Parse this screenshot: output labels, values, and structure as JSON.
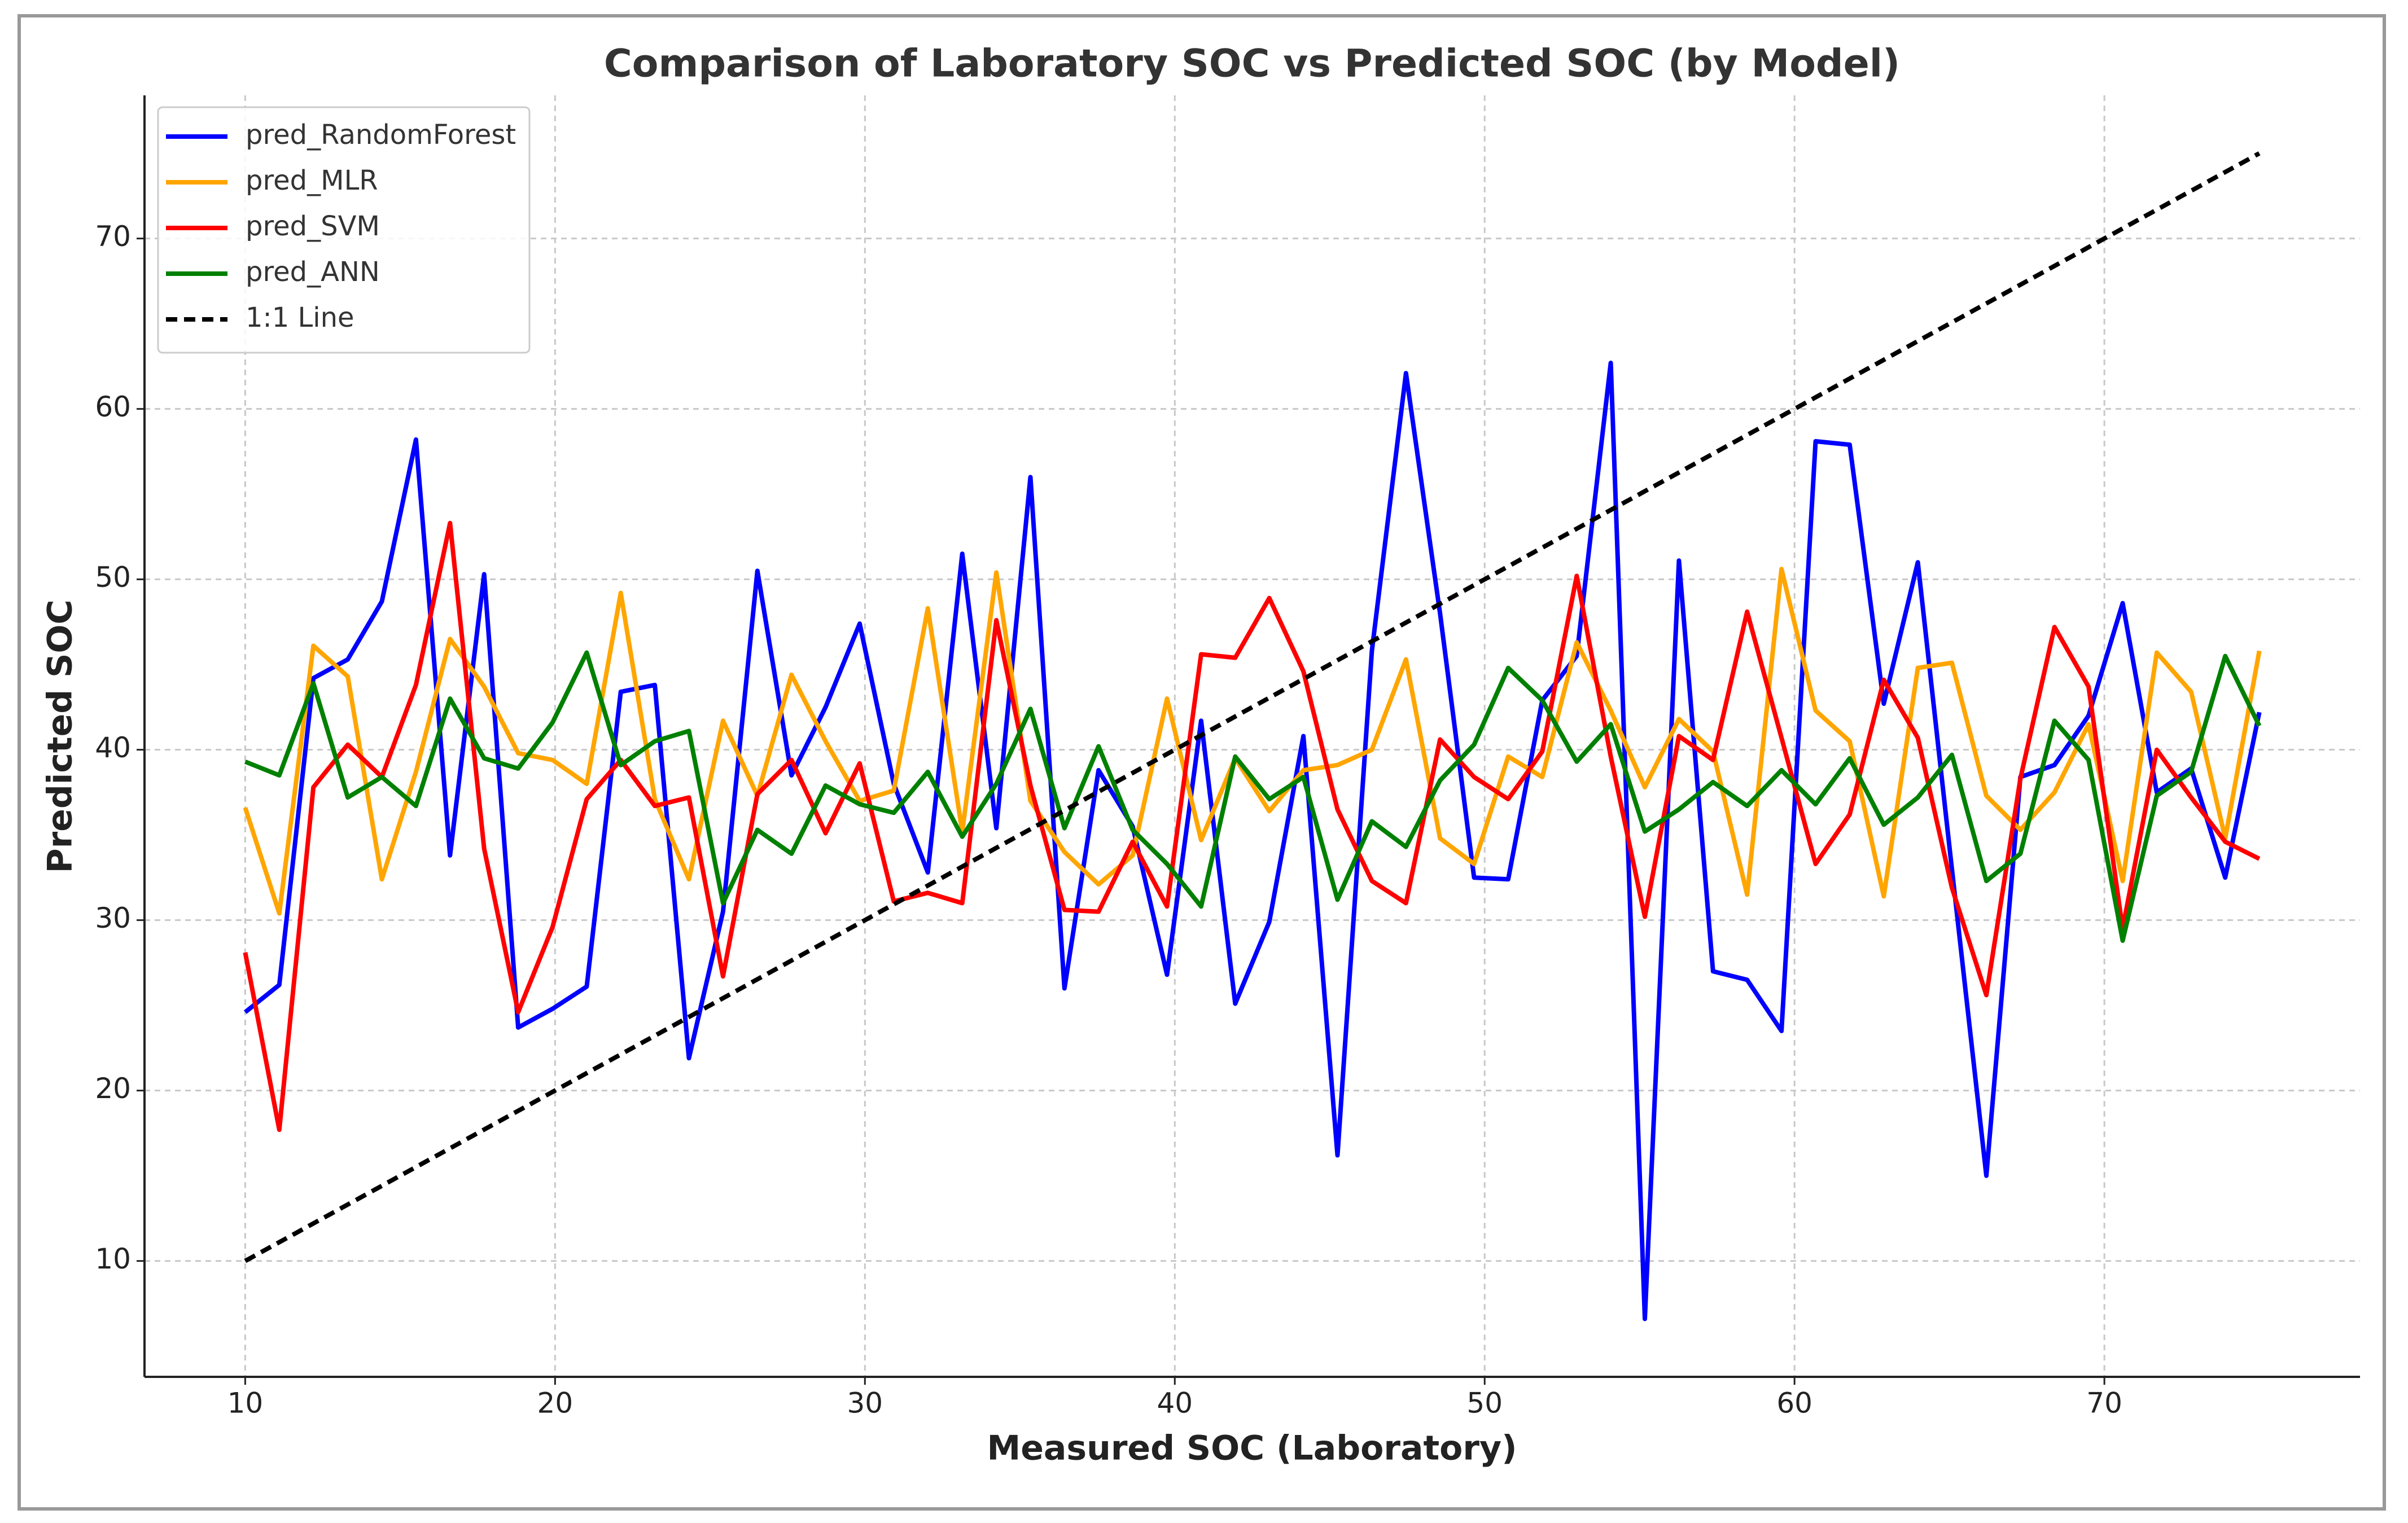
{
  "chart_data": {
    "type": "line",
    "title": "Comparison of Laboratory SOC vs Predicted SOC (by Model)",
    "xlabel": "Measured SOC (Laboratory)",
    "ylabel": "Predicted SOC",
    "x": [
      10.0,
      11.1,
      12.2,
      13.31,
      14.41,
      15.51,
      16.61,
      17.71,
      18.81,
      19.92,
      21.02,
      22.12,
      23.22,
      24.32,
      25.42,
      26.53,
      27.63,
      28.73,
      29.83,
      30.93,
      32.03,
      33.14,
      34.24,
      35.34,
      36.44,
      37.54,
      38.64,
      39.75,
      40.85,
      41.95,
      43.05,
      44.15,
      45.25,
      46.36,
      47.46,
      48.56,
      49.66,
      50.76,
      51.86,
      52.97,
      54.07,
      55.17,
      56.27,
      57.37,
      58.47,
      59.58,
      60.68,
      61.78,
      62.88,
      63.98,
      65.08,
      66.19,
      67.29,
      68.39,
      69.49,
      70.59,
      71.69,
      72.8,
      73.9,
      75.0
    ],
    "series": [
      {
        "name": "pred_RandomForest",
        "color": "#0000ff",
        "values": [
          24.6,
          26.2,
          44.2,
          45.3,
          48.7,
          58.2,
          33.8,
          50.3,
          23.7,
          24.8,
          26.1,
          43.4,
          43.8,
          21.9,
          30.5,
          50.5,
          38.5,
          42.5,
          47.4,
          38.0,
          32.8,
          51.5,
          35.4,
          56.0,
          26.0,
          38.8,
          35.5,
          26.8,
          41.7,
          25.1,
          29.9,
          40.8,
          16.2,
          45.8,
          62.1,
          48.0,
          32.5,
          32.4,
          42.9,
          45.5,
          62.7,
          6.6,
          51.1,
          27.0,
          26.5,
          23.5,
          58.1,
          57.9,
          42.7,
          51.0,
          33.0,
          15.0,
          38.4,
          39.1,
          42.0,
          48.6,
          37.5,
          38.9,
          32.5,
          42.2
        ]
      },
      {
        "name": "pred_MLR",
        "color": "#ffa500",
        "values": [
          36.6,
          30.4,
          46.1,
          44.3,
          32.4,
          38.7,
          46.5,
          43.7,
          39.8,
          39.4,
          38.0,
          49.2,
          37.1,
          32.4,
          41.7,
          37.3,
          44.4,
          40.5,
          37.0,
          37.6,
          48.3,
          35.2,
          50.4,
          37.0,
          34.0,
          32.1,
          33.8,
          43.0,
          34.7,
          39.5,
          36.4,
          38.8,
          39.1,
          40.0,
          45.3,
          34.8,
          33.3,
          39.6,
          38.4,
          46.3,
          42.3,
          37.8,
          41.8,
          39.9,
          31.5,
          50.6,
          42.3,
          40.5,
          31.4,
          44.8,
          45.1,
          37.3,
          35.3,
          37.5,
          41.5,
          32.3,
          45.7,
          43.4,
          34.8,
          45.8
        ]
      },
      {
        "name": "pred_SVM",
        "color": "#ff0000",
        "values": [
          28.1,
          17.7,
          37.8,
          40.3,
          38.4,
          43.8,
          53.3,
          34.2,
          24.6,
          29.6,
          37.1,
          39.4,
          36.7,
          37.2,
          26.7,
          37.4,
          39.4,
          35.1,
          39.2,
          31.1,
          31.6,
          31.0,
          47.6,
          37.9,
          30.6,
          30.5,
          34.6,
          30.8,
          45.6,
          45.4,
          48.9,
          44.6,
          36.5,
          32.3,
          31.0,
          40.6,
          38.4,
          37.1,
          39.9,
          50.2,
          39.6,
          30.2,
          40.8,
          39.4,
          48.1,
          40.7,
          33.3,
          36.2,
          44.1,
          40.7,
          31.9,
          25.6,
          38.3,
          47.2,
          43.7,
          29.5,
          40.0,
          37.2,
          34.6,
          33.6
        ]
      },
      {
        "name": "pred_ANN",
        "color": "#008000",
        "values": [
          39.3,
          38.5,
          43.9,
          37.2,
          38.4,
          36.7,
          43.0,
          39.5,
          38.9,
          41.6,
          45.7,
          39.1,
          40.5,
          41.1,
          31.0,
          35.3,
          33.9,
          37.9,
          36.8,
          36.3,
          38.7,
          34.9,
          38.0,
          42.4,
          35.4,
          40.2,
          35.3,
          33.3,
          30.8,
          39.6,
          37.1,
          38.4,
          31.2,
          35.8,
          34.3,
          38.2,
          40.3,
          44.8,
          42.9,
          39.3,
          41.5,
          35.2,
          36.5,
          38.1,
          36.7,
          38.8,
          36.8,
          39.5,
          35.6,
          37.2,
          39.7,
          32.3,
          33.9,
          41.7,
          39.4,
          28.8,
          37.3,
          38.7,
          45.5,
          41.4
        ]
      },
      {
        "name": "1:1 Line",
        "color": "#000000",
        "linestyle": "dashed",
        "x": [
          10,
          75
        ],
        "values": [
          10,
          75
        ]
      }
    ],
    "xlim": [
      6.75,
      78.25
    ],
    "ylim": [
      3.2,
      78.4
    ],
    "xticks": [
      10,
      20,
      30,
      40,
      50,
      60,
      70
    ],
    "yticks": [
      10,
      20,
      30,
      40,
      50,
      60,
      70
    ],
    "grid": true,
    "legend": "upper left"
  }
}
